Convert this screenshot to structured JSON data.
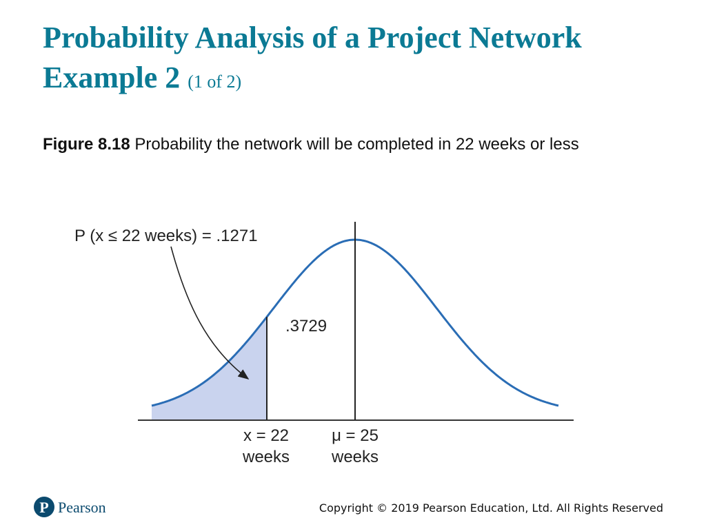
{
  "slide": {
    "title_line1": "Probability Analysis of a Project Network",
    "title_line2": "Example 2",
    "title_counter": "(1 of 2)",
    "caption_label": "Figure 8.18",
    "caption_text": "Probability the network will be completed in 22 weeks or less"
  },
  "figure": {
    "prob_label": "P (x ≤ 22 weeks) = .1271",
    "area_label": ".3729",
    "x_marker_line1": "x = 22",
    "x_marker_line2": "weeks",
    "mean_marker_line1": "μ = 25",
    "mean_marker_line2": "weeks",
    "curve_color": "#2a6db5",
    "shade_color": "#c9d3ee"
  },
  "footer": {
    "brand": "Pearson",
    "copyright": "Copyright © 2019 Pearson Education, Ltd. All Rights Reserved"
  }
}
